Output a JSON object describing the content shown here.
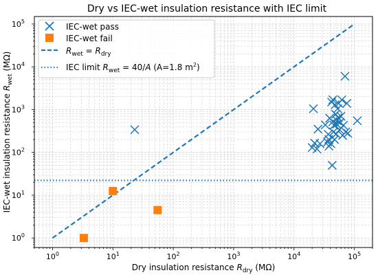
{
  "chart_data": {
    "type": "scatter",
    "title": "Dry vs IEC-wet insulation resistance with IEC limit",
    "xlabel": {
      "text": "Dry insulation resistance ",
      "var": "R",
      "sub": "dry",
      "unit": " (MΩ)"
    },
    "ylabel": {
      "text": "IEC-wet insulation resistance ",
      "var": "R",
      "sub": "wet",
      "unit": " (MΩ)"
    },
    "x_scale": "log",
    "y_scale": "log",
    "xlim": [
      0.5,
      200000
    ],
    "ylim": [
      0.6,
      150000
    ],
    "x_ticks": [
      {
        "value": 1,
        "base": "10",
        "exp": "0"
      },
      {
        "value": 10,
        "base": "10",
        "exp": "1"
      },
      {
        "value": 100,
        "base": "10",
        "exp": "2"
      },
      {
        "value": 1000,
        "base": "10",
        "exp": "3"
      },
      {
        "value": 10000,
        "base": "10",
        "exp": "4"
      },
      {
        "value": 100000,
        "base": "10",
        "exp": "5"
      }
    ],
    "y_ticks": [
      {
        "value": 1,
        "base": "10",
        "exp": "0"
      },
      {
        "value": 10,
        "base": "10",
        "exp": "1"
      },
      {
        "value": 100,
        "base": "10",
        "exp": "2"
      },
      {
        "value": 1000,
        "base": "10",
        "exp": "3"
      },
      {
        "value": 10000,
        "base": "10",
        "exp": "4"
      },
      {
        "value": 100000,
        "base": "10",
        "exp": "5"
      }
    ],
    "grid": "major and minor, dashed",
    "legend_position": "top-left",
    "colors": {
      "pass": "#1f77b4",
      "fail": "#ff7f0e",
      "grid": "#d0d0d0"
    },
    "series": [
      {
        "name": "IEC-wet pass",
        "marker": "x",
        "points": [
          [
            23,
            340
          ],
          [
            21000,
            1050
          ],
          [
            20000,
            130
          ],
          [
            22000,
            165
          ],
          [
            24000,
            120
          ],
          [
            25000,
            350
          ],
          [
            27000,
            160
          ],
          [
            33000,
            440
          ],
          [
            36000,
            175
          ],
          [
            37000,
            265
          ],
          [
            38000,
            140
          ],
          [
            38000,
            200
          ],
          [
            39000,
            630
          ],
          [
            41000,
            160
          ],
          [
            42000,
            1500
          ],
          [
            43000,
            50
          ],
          [
            44000,
            520
          ],
          [
            44000,
            1700
          ],
          [
            45000,
            300
          ],
          [
            46000,
            430
          ],
          [
            47000,
            200
          ],
          [
            48000,
            1300
          ],
          [
            49000,
            780
          ],
          [
            50000,
            270
          ],
          [
            51000,
            460
          ],
          [
            52000,
            550
          ],
          [
            53000,
            1050
          ],
          [
            54000,
            650
          ],
          [
            55000,
            1400
          ],
          [
            57000,
            340
          ],
          [
            58000,
            500
          ],
          [
            60000,
            700
          ],
          [
            62000,
            1700
          ],
          [
            64000,
            250
          ],
          [
            66000,
            430
          ],
          [
            70000,
            6000
          ],
          [
            72000,
            300
          ],
          [
            75000,
            1400
          ],
          [
            78000,
            280
          ],
          [
            112000,
            550
          ]
        ]
      },
      {
        "name": "IEC-wet fail",
        "marker": "square",
        "points": [
          [
            3.3,
            1.0
          ],
          [
            10,
            12.5
          ],
          [
            55,
            4.5
          ]
        ]
      }
    ],
    "reference_lines": [
      {
        "name_parts": {
          "a": "R",
          "a_sub": "wet",
          "eq": " = ",
          "b": "R",
          "b_sub": "dry"
        },
        "style": "dashed",
        "from": [
          1,
          1
        ],
        "to": [
          100000,
          100000
        ]
      },
      {
        "name_parts": {
          "prefix": "IEC limit ",
          "a": "R",
          "a_sub": "wet",
          "eq": " = 40/",
          "b": "A",
          "suffix_open": " (A=1.8 m",
          "sup": "2",
          "suffix_close": ")"
        },
        "style": "dotted",
        "y": 22.2
      }
    ]
  }
}
